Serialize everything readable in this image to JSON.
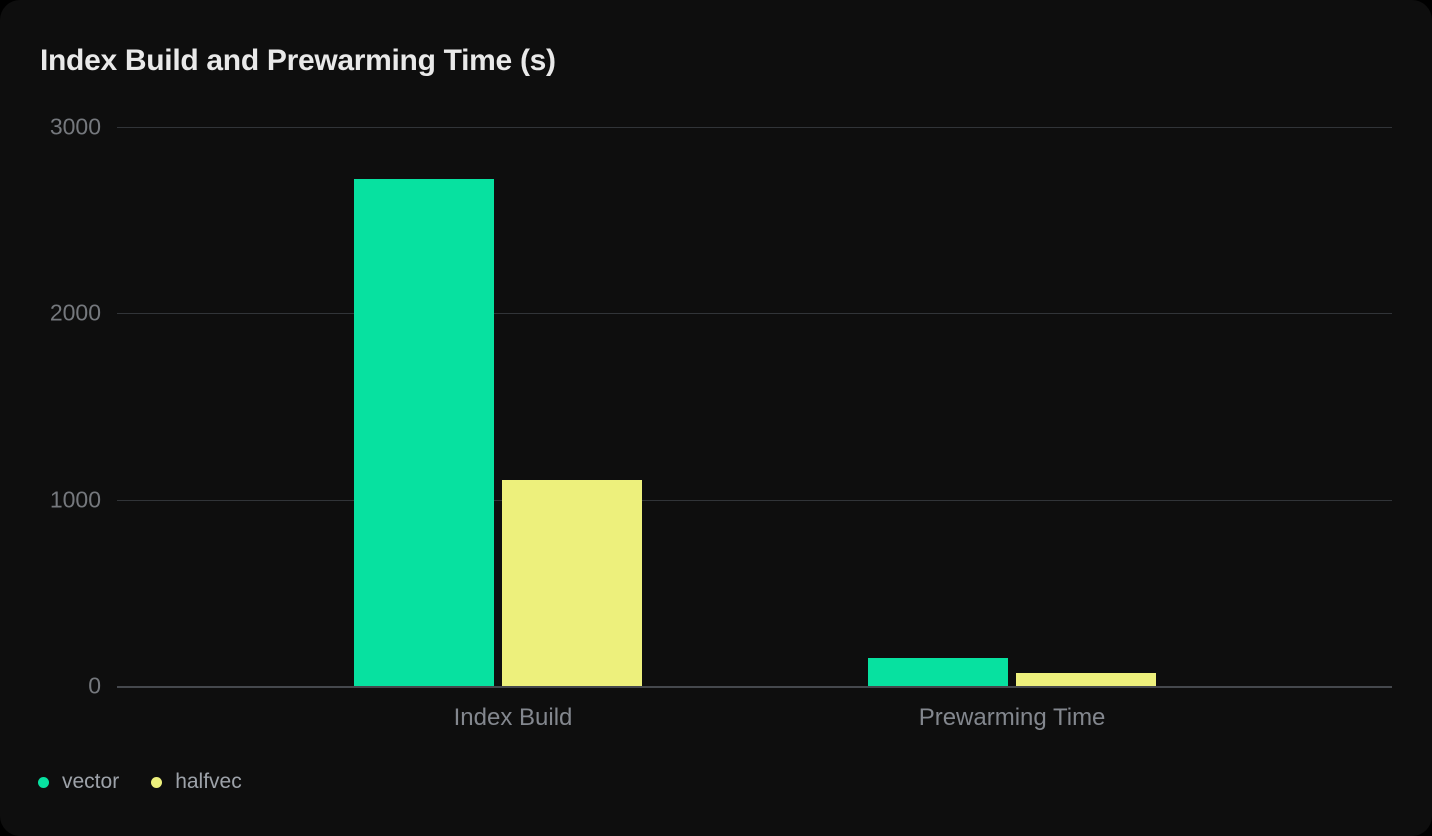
{
  "chart_data": {
    "type": "bar",
    "title": "Index Build and Prewarming Time (s)",
    "categories": [
      "Index Build",
      "Prewarming Time"
    ],
    "series": [
      {
        "name": "vector",
        "color": "#07E1A0",
        "values": [
          2720,
          150
        ]
      },
      {
        "name": "halfvec",
        "color": "#EDF07C",
        "values": [
          1105,
          70
        ]
      }
    ],
    "xlabel": "",
    "ylabel": "",
    "ylim": [
      0,
      3000
    ],
    "yticks": [
      3000,
      2000,
      1000,
      0
    ],
    "grid": true,
    "legend_position": "bottom-left"
  },
  "colors": {
    "page_bg": "#000000",
    "card_bg": "#0E0E0E",
    "title_text": "#E9E9E9",
    "grid_line": "#313438",
    "axis_line": "#45484D",
    "y_tick_text": "#75787D",
    "x_tick_text": "#83878E",
    "legend_text": "#9DA2A9"
  }
}
